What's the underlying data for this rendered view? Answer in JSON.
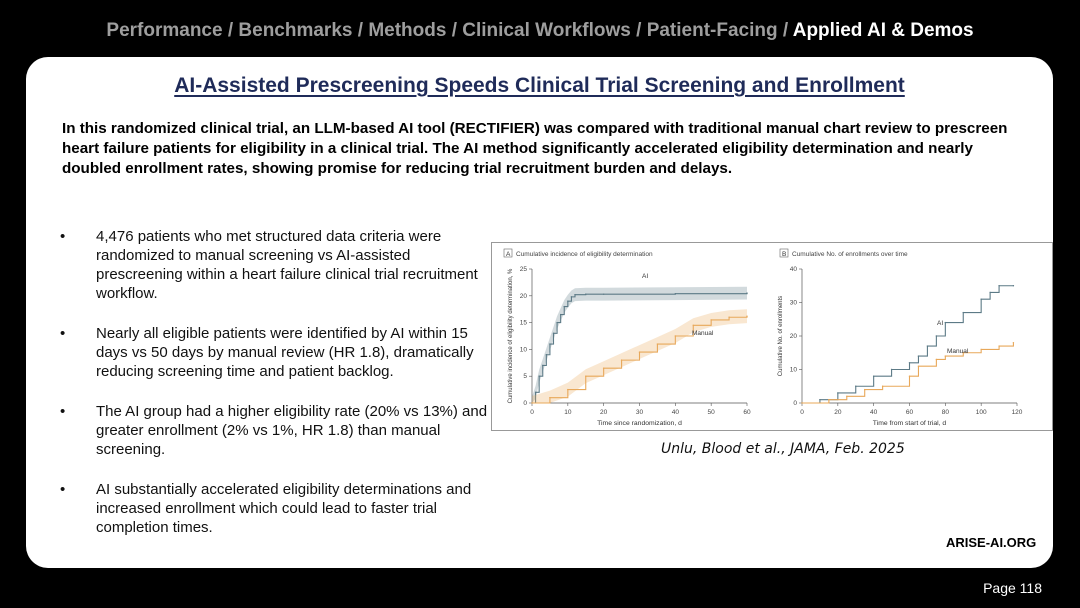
{
  "breadcrumb": {
    "items": [
      "Performance",
      "Benchmarks",
      "Methods",
      "Clinical Workflows",
      "Patient-Facing"
    ],
    "separator": " / ",
    "current": "Applied AI & Demos"
  },
  "slide": {
    "title": "AI-Assisted Prescreening Speeds Clinical Trial Screening and Enrollment",
    "summary": "In this randomized clinical trial, an LLM-based AI tool (RECTIFIER) was compared with traditional manual chart review to prescreen heart failure patients for eligibility in a clinical trial. The AI method significantly accelerated eligibility determination and nearly doubled enrollment rates, showing promise for reducing trial recruitment burden and delays.",
    "bullets": [
      "4,476 patients who met structured data criteria were randomized to manual screening vs AI-assisted prescreening within a heart failure clinical trial recruitment workflow.",
      "Nearly all eligible patients were identified by AI within 15 days vs 50 days by manual review (HR 1.8), dramatically reducing screening time and patient backlog.",
      "The AI group had a higher eligibility rate (20% vs 13%) and greater enrollment (2% vs 1%, HR 1.8) than manual screening.",
      "AI substantially accelerated eligibility determinations and increased enrollment which could lead to faster trial completion times."
    ],
    "citation": "Unlu, Blood et al., JAMA, Feb. 2025",
    "brand": "ARISE-AI.ORG",
    "page": "Page 118"
  },
  "colors": {
    "ai": "#5c7a86",
    "manual": "#e8a85a",
    "title": "#1f2b59"
  },
  "chart_data": [
    {
      "type": "line",
      "panel": "A",
      "title": "Cumulative incidence of eligibility determination",
      "xlabel": "Time since randomization, d",
      "ylabel": "Cumulative incidence of eligibility determination, %",
      "xlim": [
        0,
        60
      ],
      "ylim": [
        0,
        25
      ],
      "xticks": [
        0,
        10,
        20,
        30,
        40,
        50,
        60
      ],
      "yticks": [
        0,
        5,
        10,
        15,
        20,
        25
      ],
      "series": [
        {
          "name": "AI",
          "x": [
            0,
            1,
            2,
            3,
            4,
            5,
            6,
            7,
            8,
            9,
            10,
            11,
            12,
            15,
            20,
            40,
            60
          ],
          "values": [
            0,
            2,
            5,
            7,
            9,
            11,
            13,
            15,
            16.5,
            18,
            19,
            19.8,
            20.2,
            20.3,
            20.3,
            20.4,
            20.5
          ]
        },
        {
          "name": "Manual",
          "x": [
            0,
            5,
            10,
            15,
            20,
            25,
            30,
            35,
            40,
            45,
            50,
            55,
            60
          ],
          "values": [
            0,
            1,
            2.5,
            5,
            6.5,
            8,
            9.5,
            11,
            12.5,
            14.5,
            15.5,
            16,
            16.2
          ]
        }
      ]
    },
    {
      "type": "line",
      "panel": "B",
      "title": "Cumulative No. of enrollments over time",
      "xlabel": "Time from start of trial, d",
      "ylabel": "Cumulative No. of enrollments",
      "xlim": [
        0,
        120
      ],
      "ylim": [
        0,
        40
      ],
      "xticks": [
        0,
        20,
        40,
        60,
        80,
        100,
        120
      ],
      "yticks": [
        0,
        10,
        20,
        30,
        40
      ],
      "series": [
        {
          "name": "AI",
          "x": [
            0,
            10,
            20,
            30,
            40,
            50,
            60,
            65,
            70,
            75,
            80,
            90,
            100,
            105,
            110,
            118
          ],
          "values": [
            0,
            1,
            3,
            5,
            8,
            10,
            12,
            14,
            17,
            20,
            24,
            27,
            31,
            33,
            35,
            35
          ]
        },
        {
          "name": "Manual",
          "x": [
            0,
            15,
            25,
            35,
            45,
            60,
            65,
            75,
            80,
            90,
            100,
            110,
            118
          ],
          "values": [
            0,
            1,
            2,
            4,
            5,
            8,
            11,
            13,
            14,
            15,
            16,
            17,
            18
          ]
        }
      ]
    }
  ]
}
